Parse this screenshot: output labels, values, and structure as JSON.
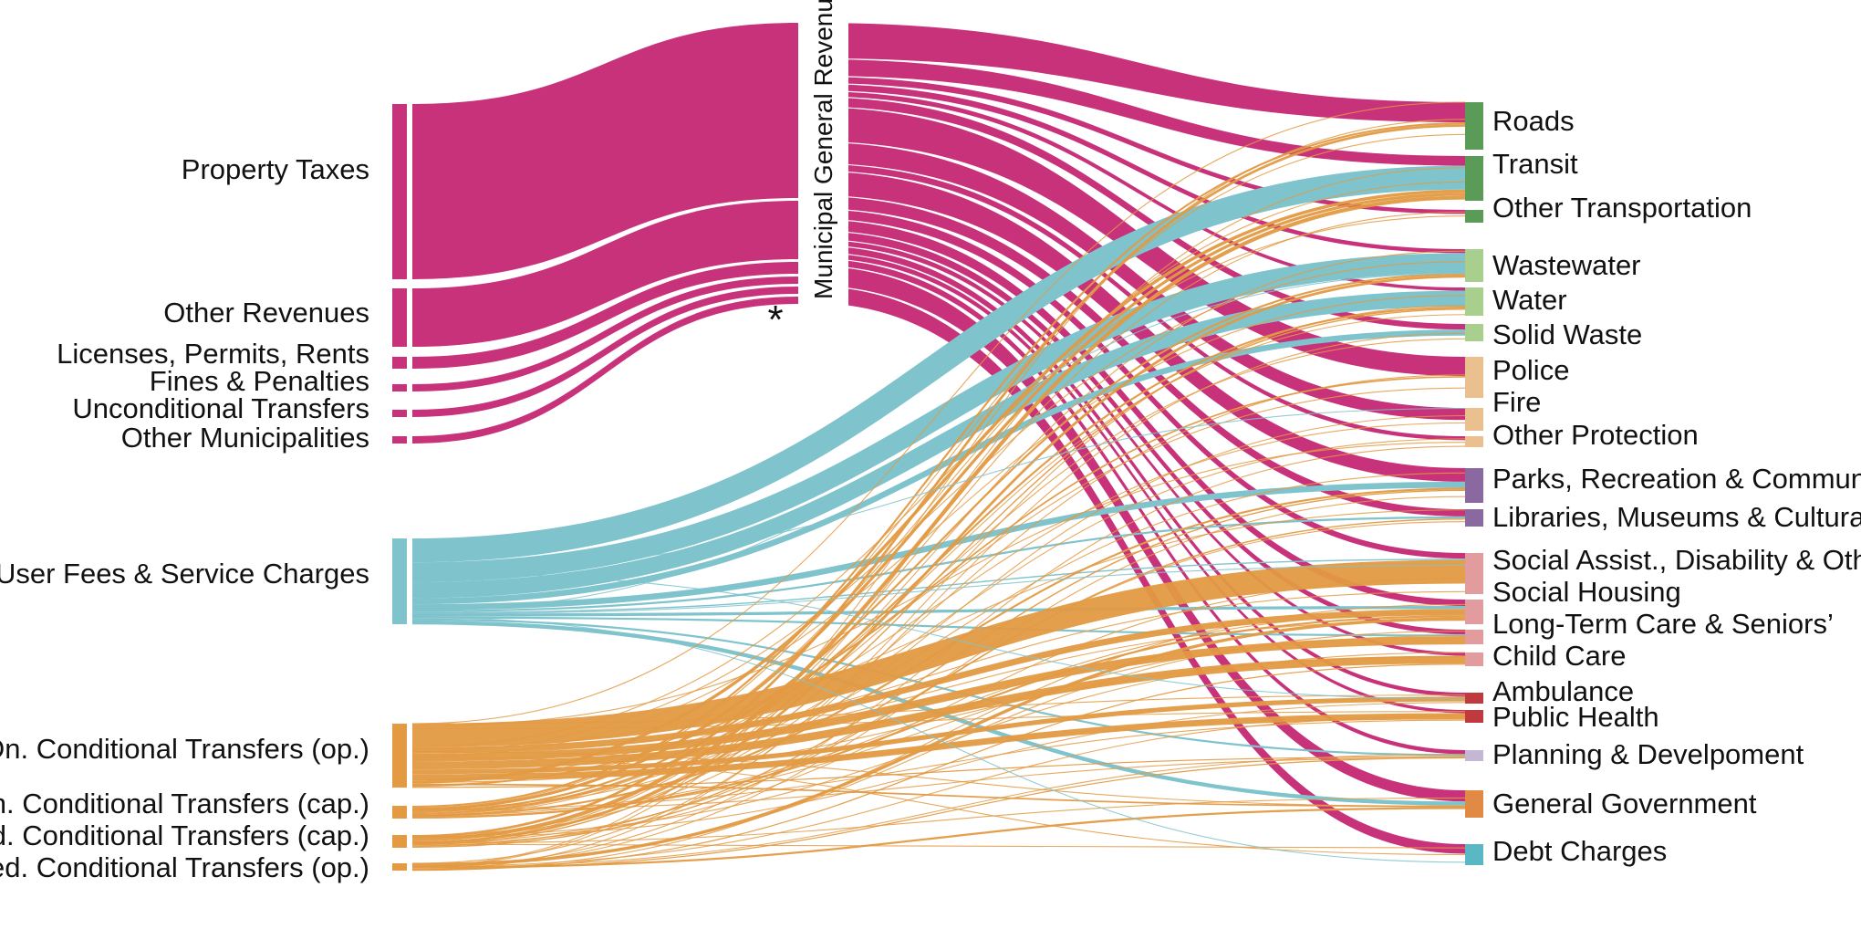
{
  "colors": {
    "magenta": "#c8327a",
    "teal": "#7fc3cc",
    "orange": "#e39a43",
    "transport": "#5a9b57",
    "environment": "#a9cf8e",
    "protection": "#ebc08f",
    "culture": "#8a68a0",
    "social": "#e39c9e",
    "health": "#bf3a3f",
    "planning": "#c5b6d5",
    "government": "#e08a45",
    "debt": "#5ab8c4"
  },
  "sources": [
    {
      "id": "property",
      "label": "Property Taxes",
      "group": "magenta"
    },
    {
      "id": "other_rev",
      "label": "Other Revenues",
      "group": "magenta"
    },
    {
      "id": "licenses",
      "label": "Licenses, Permits, Rents",
      "group": "magenta"
    },
    {
      "id": "fines",
      "label": "Fines & Penalties",
      "group": "magenta"
    },
    {
      "id": "uncond",
      "label": "Unconditional Transfers",
      "group": "magenta"
    },
    {
      "id": "other_muni",
      "label": "Other Municipalities",
      "group": "magenta"
    },
    {
      "id": "user_fees",
      "label": "User Fees & Service Charges",
      "group": "teal"
    },
    {
      "id": "on_op",
      "label": "On. Conditional Transfers (op.)",
      "group": "orange"
    },
    {
      "id": "on_cap",
      "label": "On. Conditional Transfers (cap.)",
      "group": "orange"
    },
    {
      "id": "fed_cap",
      "label": "Fed. Conditional Transfers (cap.)",
      "group": "orange"
    },
    {
      "id": "fed_op",
      "label": "Fed. Conditional Transfers (op.)",
      "group": "orange"
    }
  ],
  "middle": {
    "label": "Municipal General Revenue",
    "note": "*"
  },
  "targets": [
    {
      "id": "roads",
      "label": "Roads",
      "color": "transport"
    },
    {
      "id": "transit",
      "label": "Transit",
      "color": "transport"
    },
    {
      "id": "other_transport",
      "label": "Other Transportation",
      "color": "transport"
    },
    {
      "id": "wastewater",
      "label": "Wastewater",
      "color": "environment"
    },
    {
      "id": "water",
      "label": "Water",
      "color": "environment"
    },
    {
      "id": "solid_waste",
      "label": "Solid Waste",
      "color": "environment"
    },
    {
      "id": "police",
      "label": "Police",
      "color": "protection"
    },
    {
      "id": "fire",
      "label": "Fire",
      "color": "protection"
    },
    {
      "id": "other_protection",
      "label": "Other Protection",
      "color": "protection"
    },
    {
      "id": "parks",
      "label": "Parks, Recreation & Community",
      "color": "culture"
    },
    {
      "id": "libraries",
      "label": "Libraries, Museums & Cultural",
      "color": "culture"
    },
    {
      "id": "social_assist",
      "label": "Social Assist., Disability & Other",
      "color": "social"
    },
    {
      "id": "social_housing",
      "label": "Social Housing",
      "color": "social"
    },
    {
      "id": "ltc",
      "label": "Long-Term Care & Seniors’",
      "color": "social"
    },
    {
      "id": "child_care",
      "label": "Child Care",
      "color": "social"
    },
    {
      "id": "ambulance",
      "label": "Ambulance",
      "color": "health"
    },
    {
      "id": "public_health",
      "label": "Public Health",
      "color": "health"
    },
    {
      "id": "planning",
      "label": "Planning & Develpoment",
      "color": "planning"
    },
    {
      "id": "gen_gov",
      "label": "General Government",
      "color": "government"
    },
    {
      "id": "debt",
      "label": "Debt Charges",
      "color": "debt"
    }
  ],
  "flows": {
    "magenta_to_target": [
      {
        "target": "roads",
        "value": 50
      },
      {
        "target": "transit",
        "value": 24
      },
      {
        "target": "other_transport",
        "value": 10
      },
      {
        "target": "wastewater",
        "value": 10
      },
      {
        "target": "water",
        "value": 8
      },
      {
        "target": "solid_waste",
        "value": 14
      },
      {
        "target": "police",
        "value": 48
      },
      {
        "target": "fire",
        "value": 30
      },
      {
        "target": "other_protection",
        "value": 10
      },
      {
        "target": "parks",
        "value": 34
      },
      {
        "target": "libraries",
        "value": 18
      },
      {
        "target": "social_assist",
        "value": 14
      },
      {
        "target": "social_housing",
        "value": 16
      },
      {
        "target": "ltc",
        "value": 12
      },
      {
        "target": "child_care",
        "value": 8
      },
      {
        "target": "ambulance",
        "value": 10
      },
      {
        "target": "public_health",
        "value": 8
      },
      {
        "target": "planning",
        "value": 10
      },
      {
        "target": "gen_gov",
        "value": 28
      },
      {
        "target": "debt",
        "value": 24
      }
    ],
    "teal": [
      {
        "target": "transit",
        "value": 24
      },
      {
        "target": "wastewater",
        "value": 20
      },
      {
        "target": "water",
        "value": 16
      },
      {
        "target": "solid_waste",
        "value": 6
      },
      {
        "target": "parks",
        "value": 6
      },
      {
        "target": "libraries",
        "value": 2
      },
      {
        "target": "social_assist",
        "value": 1
      },
      {
        "target": "social_housing",
        "value": 3
      },
      {
        "target": "ltc",
        "value": 2
      },
      {
        "target": "planning",
        "value": 2
      },
      {
        "target": "gen_gov",
        "value": 4
      }
    ],
    "orange": [
      {
        "source": "on_op",
        "target": "social_assist",
        "value": 30
      },
      {
        "source": "on_op",
        "target": "social_housing",
        "value": 8
      },
      {
        "source": "on_op",
        "target": "ltc",
        "value": 10
      },
      {
        "source": "on_op",
        "target": "child_care",
        "value": 10
      },
      {
        "source": "on_op",
        "target": "ambulance",
        "value": 6
      },
      {
        "source": "on_op",
        "target": "public_health",
        "value": 8
      },
      {
        "source": "on_op",
        "target": "transit",
        "value": 4
      },
      {
        "source": "on_op",
        "target": "gen_gov",
        "value": 2
      },
      {
        "source": "on_op",
        "target": "police",
        "value": 2
      },
      {
        "source": "on_op",
        "target": "planning",
        "value": 1
      },
      {
        "source": "on_cap",
        "target": "roads",
        "value": 2
      },
      {
        "source": "on_cap",
        "target": "transit",
        "value": 3
      },
      {
        "source": "on_cap",
        "target": "wastewater",
        "value": 2
      },
      {
        "source": "on_cap",
        "target": "water",
        "value": 2
      },
      {
        "source": "on_cap",
        "target": "parks",
        "value": 2
      },
      {
        "source": "on_cap",
        "target": "social_housing",
        "value": 2
      },
      {
        "source": "fed_cap",
        "target": "roads",
        "value": 2
      },
      {
        "source": "fed_cap",
        "target": "transit",
        "value": 3
      },
      {
        "source": "fed_cap",
        "target": "wastewater",
        "value": 2
      },
      {
        "source": "fed_cap",
        "target": "water",
        "value": 1
      },
      {
        "source": "fed_cap",
        "target": "parks",
        "value": 1
      },
      {
        "source": "fed_cap",
        "target": "libraries",
        "value": 1
      },
      {
        "source": "fed_op",
        "target": "social_housing",
        "value": 3
      },
      {
        "source": "fed_op",
        "target": "gen_gov",
        "value": 2
      },
      {
        "source": "fed_op",
        "target": "planning",
        "value": 1
      },
      {
        "source": "fed_op",
        "target": "child_care",
        "value": 1
      }
    ],
    "magenta_source_values": [
      {
        "source": "property",
        "value": 100
      },
      {
        "source": "other_rev",
        "value": 33
      },
      {
        "source": "licenses",
        "value": 6
      },
      {
        "source": "fines",
        "value": 3
      },
      {
        "source": "uncond",
        "value": 3
      },
      {
        "source": "other_muni",
        "value": 3
      }
    ]
  }
}
